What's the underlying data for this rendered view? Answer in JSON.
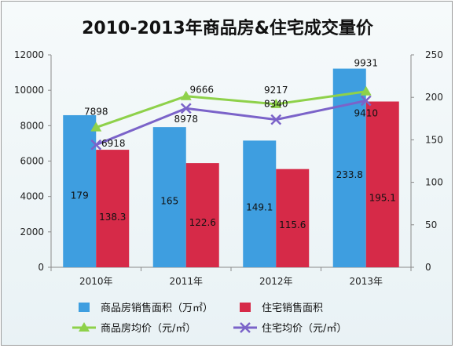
{
  "chart_data": {
    "type": "bar",
    "title": "2010-2013年商品房&住宅成交量价",
    "categories": [
      "2010年",
      "2011年",
      "2012年",
      "2013年"
    ],
    "left_axis": {
      "ylim": [
        0,
        12000
      ],
      "ticks": [
        "0",
        "2000",
        "4000",
        "6000",
        "8000",
        "10000",
        "12000"
      ]
    },
    "right_axis": {
      "ylim": [
        0,
        250
      ],
      "ticks": [
        "0",
        "50",
        "100",
        "150",
        "200",
        "250"
      ]
    },
    "series": [
      {
        "name": "商品房销售面积（万㎡）",
        "type": "bar",
        "axis": "right",
        "color": "#3e9ee0",
        "values": [
          179,
          165,
          149.1,
          233.8
        ],
        "labels": [
          "179",
          "165",
          "149.1",
          "233.8"
        ]
      },
      {
        "name": "住宅销售面积",
        "type": "bar",
        "axis": "right",
        "color": "#d62a48",
        "values": [
          138.3,
          122.6,
          115.6,
          195.1
        ],
        "labels": [
          "138.3",
          "122.6",
          "115.6",
          "195.1"
        ]
      },
      {
        "name": "商品房均价（元/㎡）",
        "type": "line",
        "axis": "left",
        "color": "#8ed14a",
        "marker": "triangle",
        "values": [
          7898,
          9666,
          9217,
          9931
        ],
        "labels": [
          "7898",
          "9666",
          "9217",
          "9931"
        ]
      },
      {
        "name": "住宅均价（元/㎡）",
        "type": "line",
        "axis": "left",
        "color": "#7b63c9",
        "marker": "x",
        "values": [
          6918,
          8978,
          8340,
          9410
        ],
        "labels": [
          "6918",
          "8978",
          "8340",
          "9410"
        ]
      }
    ],
    "grid": false,
    "legend_position": "bottom"
  }
}
